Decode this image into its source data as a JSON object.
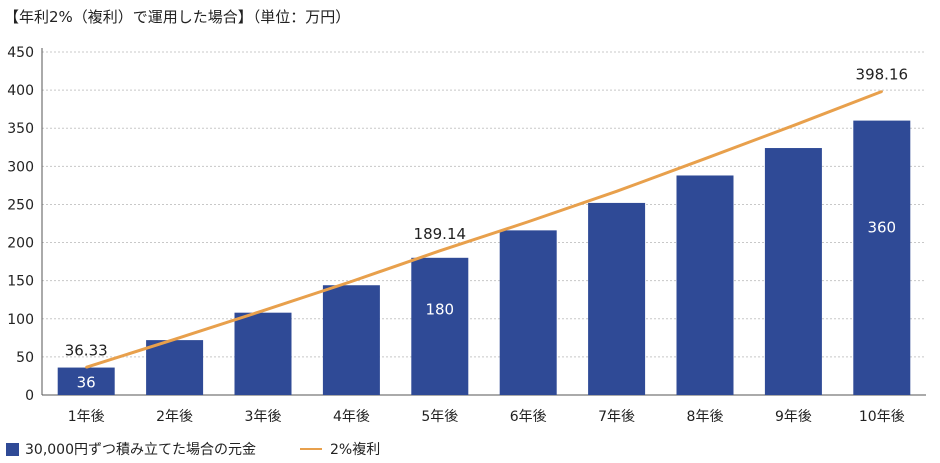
{
  "title": "【年利2%（複利）で運用した場合】（単位：万円）",
  "legend": {
    "bar_label": "30,000円ずつ積み立てた場合の元金",
    "line_label": "2%複利"
  },
  "colors": {
    "bar": "#2f4a96",
    "line": "#e8a04c",
    "grid": "#c8c8c8",
    "axis": "#555555"
  },
  "chart_data": {
    "type": "bar",
    "title": "【年利2%（複利）で運用した場合】（単位：万円）",
    "categories": [
      "1年後",
      "2年後",
      "3年後",
      "4年後",
      "5年後",
      "6年後",
      "7年後",
      "8年後",
      "9年後",
      "10年後"
    ],
    "ylim": [
      0,
      450
    ],
    "yticks": [
      0,
      50,
      100,
      150,
      200,
      250,
      300,
      350,
      400,
      450
    ],
    "grid": true,
    "legend_position": "bottom-left",
    "series": [
      {
        "name": "30,000円ずつ積み立てた場合の元金",
        "type": "bar",
        "values": [
          36,
          72,
          108,
          144,
          180,
          216,
          252,
          288,
          324,
          360
        ],
        "labels": {
          "0": "36",
          "4": "180",
          "9": "360"
        }
      },
      {
        "name": "2%複利",
        "type": "line",
        "values": [
          36.33,
          73.1,
          110.6,
          148.9,
          189.14,
          227.3,
          267.2,
          310.0,
          353.5,
          398.16
        ],
        "labels": {
          "0": "36.33",
          "4": "189.14",
          "9": "398.16"
        }
      }
    ]
  }
}
